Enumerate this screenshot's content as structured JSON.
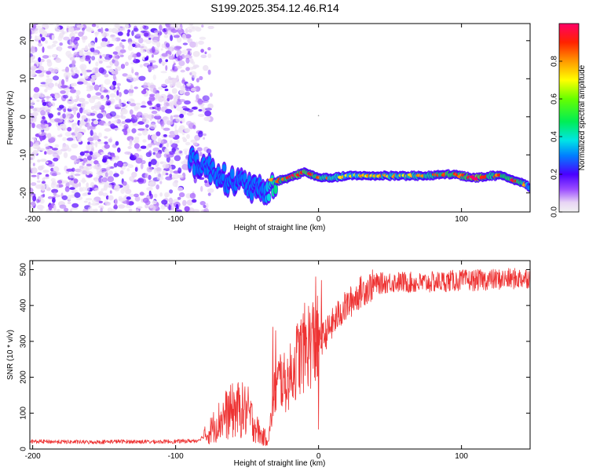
{
  "title": "S199.2025.354.12.46.R14",
  "chart_data": [
    {
      "type": "heatmap",
      "name": "spectrogram",
      "xlabel": "Height of straight line (km)",
      "ylabel": "Frequency (Hz)",
      "xlim": [
        -202,
        148
      ],
      "ylim": [
        -25,
        24.5
      ],
      "xticks": [
        -200,
        -100,
        0,
        100
      ],
      "yticks": [
        -20,
        -10,
        0,
        10,
        20
      ],
      "colorbar": {
        "label": "Normalized spectral amplitude",
        "range": [
          0,
          1
        ],
        "ticks": [
          0.0,
          0.2,
          0.4,
          0.6,
          0.8
        ],
        "tick_labels": [
          "0.0",
          "0.2",
          "0.4",
          "0.6",
          "0.8"
        ]
      },
      "noise_region": {
        "x_range": [
          -202,
          -75
        ],
        "freq_range": [
          -25,
          24.5
        ],
        "amplitude_range": [
          0.02,
          0.2
        ]
      },
      "ridge": {
        "description": "dominant frequency track",
        "x": [
          -90,
          -80,
          -70,
          -60,
          -50,
          -40,
          -35,
          -30,
          -20,
          -10,
          0,
          10,
          20,
          40,
          60,
          80,
          90,
          100,
          110,
          120,
          130,
          140,
          148
        ],
        "freq": [
          -11,
          -13,
          -15,
          -17,
          -18,
          -20,
          -19,
          -17,
          -16,
          -14.5,
          -16,
          -16,
          -15.5,
          -15.5,
          -15.5,
          -15.5,
          -15,
          -15.5,
          -16,
          -15.5,
          -15.5,
          -17,
          -18.5
        ],
        "amplitude": [
          0.15,
          0.18,
          0.3,
          0.35,
          0.4,
          0.3,
          0.5,
          0.6,
          0.7,
          0.75,
          0.6,
          0.55,
          0.5,
          0.55,
          0.55,
          0.6,
          0.7,
          0.65,
          0.85,
          0.6,
          0.65,
          0.7,
          0.4
        ]
      }
    },
    {
      "type": "line",
      "name": "snr",
      "xlabel": "Height of straight line (km)",
      "ylabel": "SNR (10 * v/v)",
      "xlim": [
        -202,
        148
      ],
      "ylim": [
        0,
        525
      ],
      "xticks": [
        -200,
        -100,
        0,
        100
      ],
      "yticks": [
        0,
        100,
        200,
        300,
        400,
        500
      ],
      "color": "#ee3333",
      "series": [
        {
          "name": "SNR",
          "x": [
            -202,
            -180,
            -160,
            -140,
            -120,
            -100,
            -85,
            -78,
            -72,
            -65,
            -58,
            -50,
            -45,
            -40,
            -35,
            -31,
            -27,
            -23,
            -19,
            -15,
            -10,
            -5,
            0,
            5,
            10,
            15,
            20,
            25,
            30,
            35,
            40,
            50,
            60,
            70,
            80,
            90,
            100,
            110,
            120,
            130,
            140,
            148
          ],
          "y": [
            20,
            19,
            18,
            20,
            19,
            20,
            22,
            40,
            70,
            95,
            110,
            105,
            70,
            35,
            30,
            150,
            200,
            180,
            210,
            250,
            280,
            300,
            295,
            320,
            350,
            380,
            400,
            420,
            440,
            450,
            460,
            465,
            465,
            462,
            465,
            468,
            470,
            470,
            472,
            473,
            475,
            478
          ]
        }
      ],
      "spikes": [
        {
          "x": -32,
          "y": 340
        },
        {
          "x": -30,
          "y": 330
        },
        {
          "x": -2,
          "y": 480
        },
        {
          "x": 2,
          "y": 470
        },
        {
          "x": 0,
          "y": 55
        }
      ]
    }
  ]
}
